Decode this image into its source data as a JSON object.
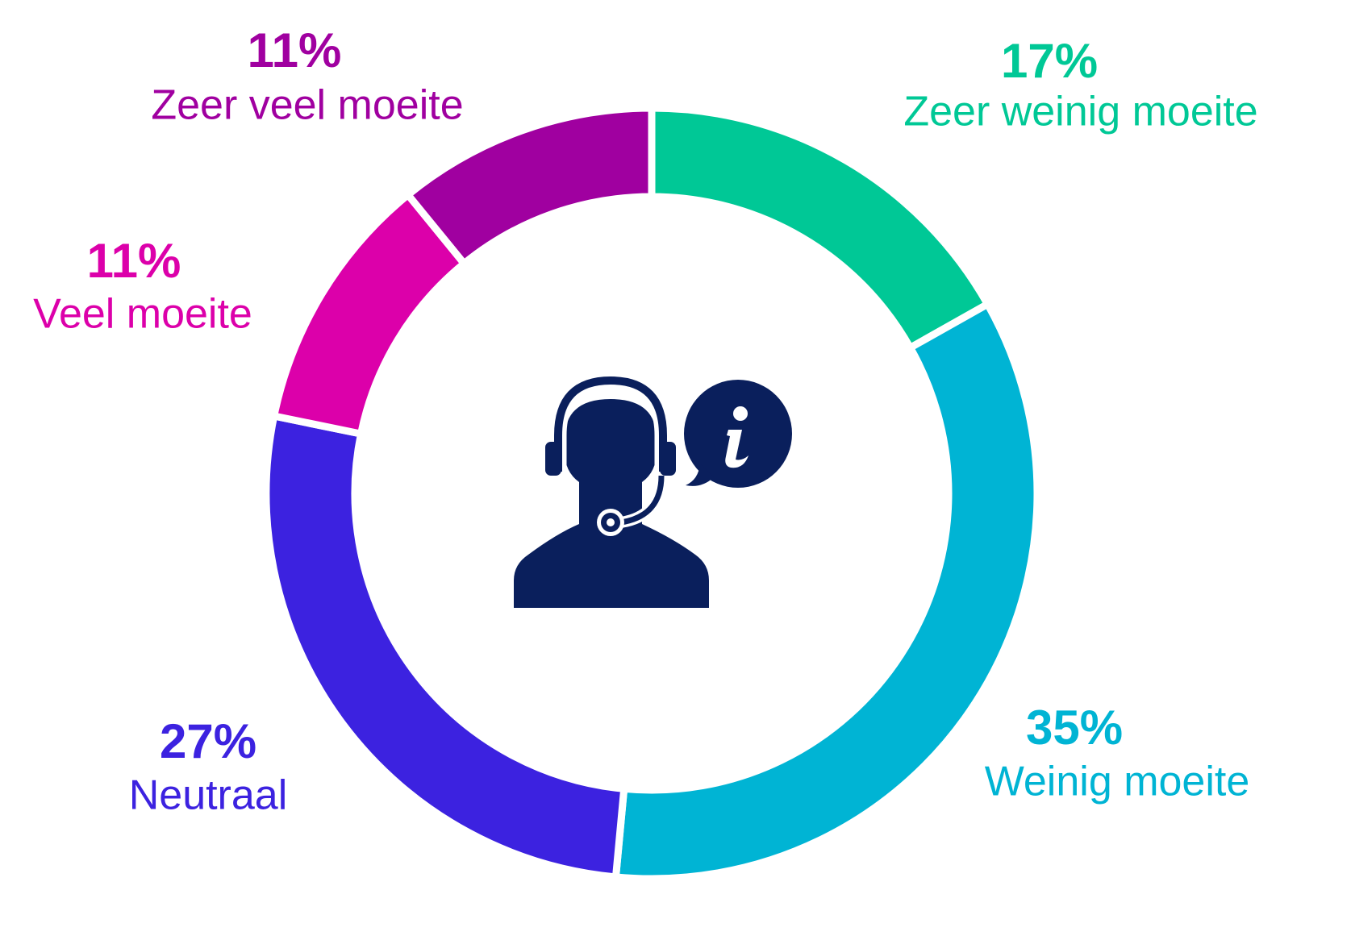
{
  "chart_data": {
    "type": "donut",
    "categories": [
      "Zeer weinig moeite",
      "Weinig moeite",
      "Neutraal",
      "Veel moeite",
      "Zeer veel moeite"
    ],
    "values": [
      17,
      35,
      27,
      11,
      11
    ],
    "value_labels": [
      "17%",
      "35%",
      "27%",
      "11%",
      "11%"
    ],
    "colors": [
      "#00c896",
      "#00b4d4",
      "#3c22e0",
      "#dc00aa",
      "#a000a0"
    ]
  }
}
